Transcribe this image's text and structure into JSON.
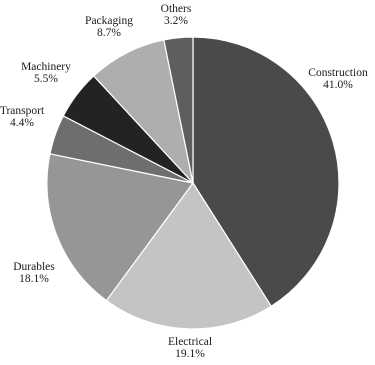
{
  "chart_data": {
    "type": "pie",
    "title": "",
    "categories": [
      "Construction",
      "Electrical",
      "Durables",
      "Transport",
      "Machinery",
      "Packaging",
      "Others"
    ],
    "values": [
      41.0,
      19.1,
      18.1,
      4.4,
      5.5,
      8.7,
      3.2
    ],
    "value_labels": [
      "41.0%",
      "19.1%",
      "18.1%",
      "4.4%",
      "5.5%",
      "8.7%",
      "3.2%"
    ],
    "colors": [
      "#4a4a4a",
      "#c4c4c4",
      "#969696",
      "#6e6e6e",
      "#232323",
      "#aeaeae",
      "#5e5e5e"
    ],
    "start": "top",
    "direction": "clockwise",
    "legend": "none"
  }
}
